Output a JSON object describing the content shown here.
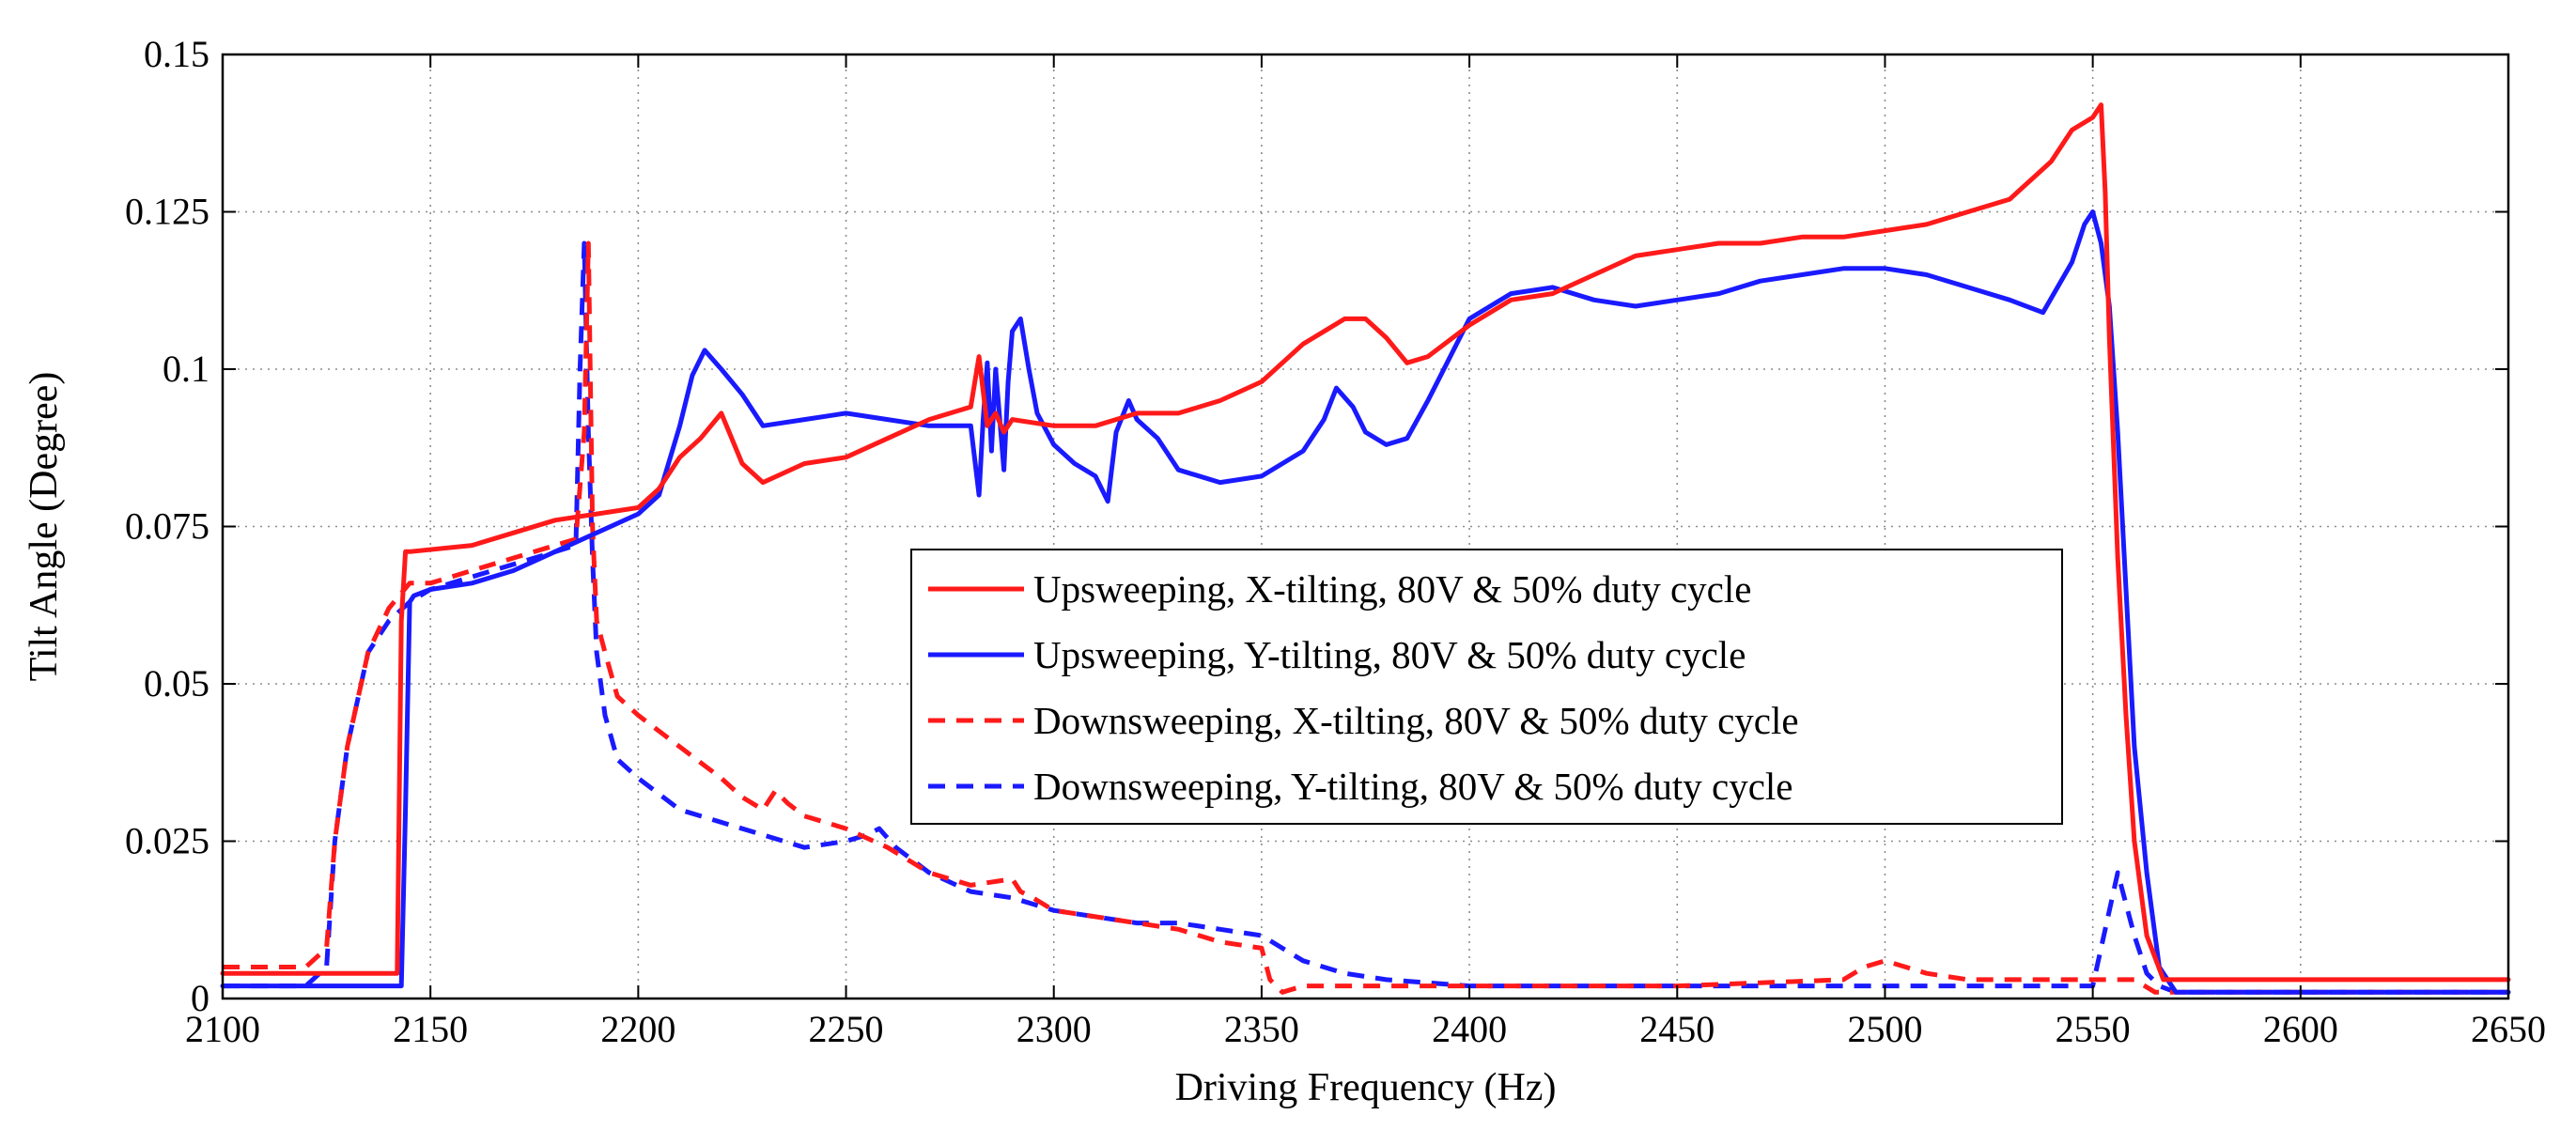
{
  "chart_data": {
    "type": "line",
    "title": "",
    "xlabel": "Driving Frequency (Hz)",
    "ylabel": "Tilt Angle (Degree)",
    "xlim": [
      2100,
      2650
    ],
    "ylim": [
      0,
      0.15
    ],
    "xticks": [
      2100,
      2150,
      2200,
      2250,
      2300,
      2350,
      2400,
      2450,
      2500,
      2550,
      2600,
      2650
    ],
    "xtick_labels": [
      "2100",
      "2150",
      "2200",
      "2250",
      "2300",
      "2350",
      "2400",
      "2450",
      "2500",
      "2550",
      "2600",
      "2650"
    ],
    "yticks": [
      0,
      0.025,
      0.05,
      0.075,
      0.1,
      0.125,
      0.15
    ],
    "ytick_labels": [
      "0",
      "0.025",
      "0.05",
      "0.075",
      "0.1",
      "0.125",
      "0.15"
    ],
    "grid": true,
    "legend_position": "center-right",
    "colors": {
      "red": "#ff1a1a",
      "blue": "#1a1aff"
    },
    "series": [
      {
        "name": "Upsweeping, X-tilting, 80V & 50% duty cycle",
        "color": "#ff1a1a",
        "style": "solid",
        "x": [
          2100,
          2142,
          2143,
          2144,
          2145,
          2160,
          2170,
          2180,
          2190,
          2200,
          2205,
          2210,
          2215,
          2220,
          2225,
          2230,
          2240,
          2250,
          2260,
          2270,
          2280,
          2282,
          2284,
          2286,
          2288,
          2290,
          2300,
          2310,
          2320,
          2330,
          2340,
          2350,
          2360,
          2365,
          2370,
          2375,
          2380,
          2385,
          2390,
          2400,
          2410,
          2420,
          2430,
          2440,
          2450,
          2460,
          2470,
          2480,
          2490,
          2500,
          2510,
          2520,
          2530,
          2540,
          2545,
          2550,
          2552,
          2553,
          2554,
          2556,
          2558,
          2560,
          2563,
          2567,
          2570,
          2580,
          2600,
          2620,
          2650
        ],
        "values": [
          0.004,
          0.004,
          0.06,
          0.071,
          0.071,
          0.072,
          0.074,
          0.076,
          0.077,
          0.078,
          0.081,
          0.086,
          0.089,
          0.093,
          0.085,
          0.082,
          0.085,
          0.086,
          0.089,
          0.092,
          0.094,
          0.102,
          0.091,
          0.093,
          0.09,
          0.092,
          0.091,
          0.091,
          0.093,
          0.093,
          0.095,
          0.098,
          0.104,
          0.106,
          0.108,
          0.108,
          0.105,
          0.101,
          0.102,
          0.107,
          0.111,
          0.112,
          0.115,
          0.118,
          0.119,
          0.12,
          0.12,
          0.121,
          0.121,
          0.122,
          0.123,
          0.125,
          0.127,
          0.133,
          0.138,
          0.14,
          0.142,
          0.128,
          0.105,
          0.07,
          0.045,
          0.025,
          0.01,
          0.003,
          0.003,
          0.003,
          0.003,
          0.003,
          0.003
        ]
      },
      {
        "name": "Upsweeping, Y-tilting, 80V & 50% duty cycle",
        "color": "#1a1aff",
        "style": "solid",
        "x": [
          2100,
          2143,
          2144,
          2145,
          2146,
          2150,
          2160,
          2170,
          2180,
          2190,
          2200,
          2205,
          2210,
          2213,
          2216,
          2220,
          2225,
          2230,
          2240,
          2250,
          2260,
          2270,
          2280,
          2282,
          2283,
          2284,
          2285,
          2286,
          2288,
          2289,
          2290,
          2292,
          2294,
          2296,
          2300,
          2305,
          2310,
          2313,
          2315,
          2318,
          2320,
          2325,
          2330,
          2340,
          2350,
          2355,
          2360,
          2365,
          2368,
          2372,
          2375,
          2380,
          2385,
          2390,
          2400,
          2410,
          2420,
          2430,
          2440,
          2450,
          2460,
          2470,
          2480,
          2490,
          2500,
          2510,
          2520,
          2530,
          2538,
          2545,
          2548,
          2550,
          2552,
          2554,
          2556,
          2558,
          2560,
          2563,
          2566,
          2570,
          2580,
          2600,
          2620,
          2650
        ],
        "values": [
          0.002,
          0.002,
          0.03,
          0.063,
          0.064,
          0.065,
          0.066,
          0.068,
          0.071,
          0.074,
          0.077,
          0.08,
          0.091,
          0.099,
          0.103,
          0.1,
          0.096,
          0.091,
          0.092,
          0.093,
          0.092,
          0.091,
          0.091,
          0.08,
          0.092,
          0.101,
          0.087,
          0.1,
          0.084,
          0.098,
          0.106,
          0.108,
          0.1,
          0.093,
          0.088,
          0.085,
          0.083,
          0.079,
          0.09,
          0.095,
          0.092,
          0.089,
          0.084,
          0.082,
          0.083,
          0.085,
          0.087,
          0.092,
          0.097,
          0.094,
          0.09,
          0.088,
          0.089,
          0.095,
          0.108,
          0.112,
          0.113,
          0.111,
          0.11,
          0.111,
          0.112,
          0.114,
          0.115,
          0.116,
          0.116,
          0.115,
          0.113,
          0.111,
          0.109,
          0.117,
          0.123,
          0.125,
          0.12,
          0.11,
          0.09,
          0.065,
          0.04,
          0.02,
          0.005,
          0.001,
          0.001,
          0.001,
          0.001,
          0.001
        ]
      },
      {
        "name": "Downsweeping, X-tilting, 80V & 50% duty cycle",
        "color": "#ff1a1a",
        "style": "dashed",
        "x": [
          2100,
          2120,
          2125,
          2127,
          2130,
          2135,
          2140,
          2145,
          2150,
          2160,
          2170,
          2180,
          2185,
          2187,
          2188,
          2189,
          2190,
          2192,
          2195,
          2200,
          2210,
          2220,
          2225,
          2230,
          2233,
          2236,
          2240,
          2250,
          2260,
          2270,
          2280,
          2290,
          2292,
          2295,
          2300,
          2310,
          2320,
          2330,
          2340,
          2350,
          2352,
          2355,
          2360,
          2380,
          2400,
          2450,
          2490,
          2495,
          2500,
          2505,
          2510,
          2520,
          2540,
          2560,
          2565,
          2568,
          2570,
          2600,
          2650
        ],
        "values": [
          0.005,
          0.005,
          0.008,
          0.025,
          0.04,
          0.055,
          0.062,
          0.066,
          0.066,
          0.068,
          0.07,
          0.072,
          0.073,
          0.09,
          0.12,
          0.075,
          0.06,
          0.055,
          0.048,
          0.045,
          0.04,
          0.035,
          0.032,
          0.03,
          0.033,
          0.031,
          0.029,
          0.027,
          0.024,
          0.02,
          0.018,
          0.019,
          0.017,
          0.016,
          0.014,
          0.013,
          0.012,
          0.011,
          0.009,
          0.008,
          0.003,
          0.001,
          0.002,
          0.002,
          0.002,
          0.002,
          0.003,
          0.005,
          0.006,
          0.005,
          0.004,
          0.003,
          0.003,
          0.003,
          0.001,
          0.001,
          0.001,
          0.001,
          0.001
        ]
      },
      {
        "name": "Downsweeping, Y-tilting, 80V & 50% duty cycle",
        "color": "#1a1aff",
        "style": "dashed",
        "x": [
          2100,
          2120,
          2125,
          2127,
          2130,
          2135,
          2140,
          2145,
          2150,
          2160,
          2170,
          2180,
          2185,
          2186,
          2187,
          2188,
          2189,
          2190,
          2192,
          2195,
          2200,
          2210,
          2220,
          2230,
          2240,
          2250,
          2255,
          2258,
          2262,
          2270,
          2280,
          2290,
          2300,
          2310,
          2320,
          2330,
          2340,
          2350,
          2355,
          2360,
          2370,
          2380,
          2400,
          2450,
          2500,
          2550,
          2556,
          2560,
          2563,
          2566,
          2570,
          2600,
          2650
        ],
        "values": [
          0.002,
          0.002,
          0.005,
          0.025,
          0.04,
          0.055,
          0.06,
          0.063,
          0.065,
          0.067,
          0.069,
          0.071,
          0.072,
          0.1,
          0.12,
          0.09,
          0.07,
          0.055,
          0.045,
          0.038,
          0.035,
          0.03,
          0.028,
          0.026,
          0.024,
          0.025,
          0.026,
          0.027,
          0.024,
          0.02,
          0.017,
          0.016,
          0.014,
          0.013,
          0.012,
          0.012,
          0.011,
          0.01,
          0.008,
          0.006,
          0.004,
          0.003,
          0.002,
          0.002,
          0.002,
          0.002,
          0.02,
          0.01,
          0.004,
          0.002,
          0.001,
          0.001,
          0.001
        ]
      }
    ]
  }
}
